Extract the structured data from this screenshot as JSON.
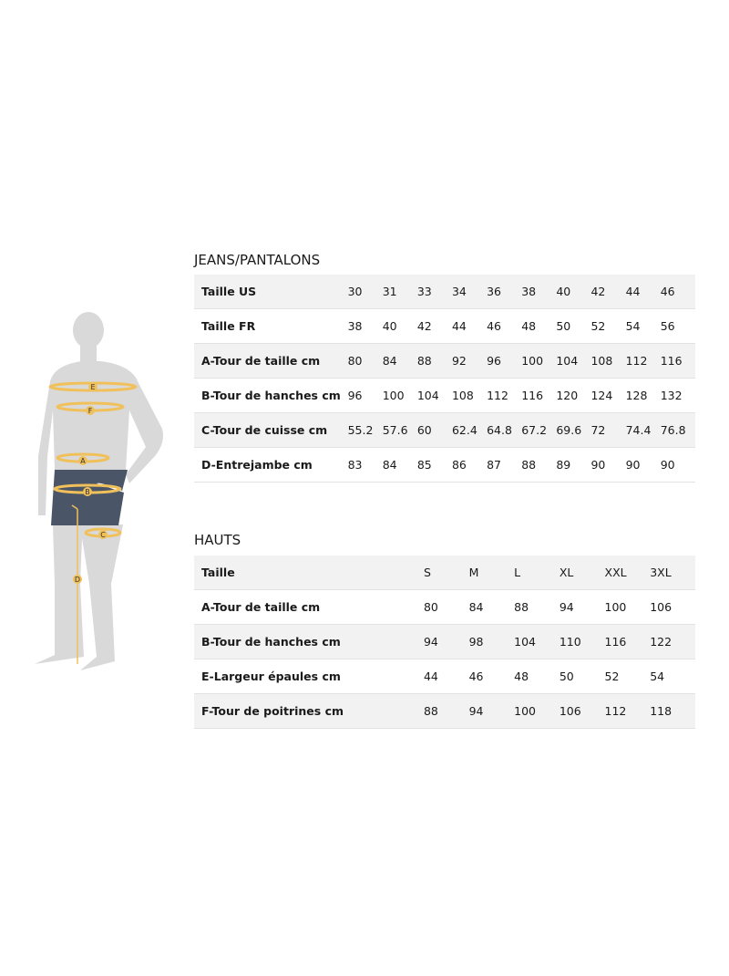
{
  "jeans": {
    "title": "JEANS/PANTALONS",
    "rows": [
      {
        "label": "Taille US",
        "values": [
          "30",
          "31",
          "33",
          "34",
          "36",
          "38",
          "40",
          "42",
          "44",
          "46"
        ]
      },
      {
        "label": "Taille FR",
        "values": [
          "38",
          "40",
          "42",
          "44",
          "46",
          "48",
          "50",
          "52",
          "54",
          "56"
        ]
      },
      {
        "label": "A-Tour de taille cm",
        "values": [
          "80",
          "84",
          "88",
          "92",
          "96",
          "100",
          "104",
          "108",
          "112",
          "116"
        ]
      },
      {
        "label": "B-Tour de hanches cm",
        "values": [
          "96",
          "100",
          "104",
          "108",
          "112",
          "116",
          "120",
          "124",
          "128",
          "132"
        ]
      },
      {
        "label": "C-Tour de cuisse cm",
        "values": [
          "55.2",
          "57.6",
          "60",
          "62.4",
          "64.8",
          "67.2",
          "69.6",
          "72",
          "74.4",
          "76.8"
        ]
      },
      {
        "label": "D-Entrejambe cm",
        "values": [
          "83",
          "84",
          "85",
          "86",
          "87",
          "88",
          "89",
          "90",
          "90",
          "90"
        ]
      }
    ]
  },
  "hauts": {
    "title": "HAUTS",
    "rows": [
      {
        "label": "Taille",
        "values": [
          "S",
          "M",
          "L",
          "XL",
          "XXL",
          "3XL"
        ]
      },
      {
        "label": "A-Tour de taille cm",
        "values": [
          "80",
          "84",
          "88",
          "94",
          "100",
          "106"
        ]
      },
      {
        "label": "B-Tour de hanches cm",
        "values": [
          "94",
          "98",
          "104",
          "110",
          "116",
          "122"
        ]
      },
      {
        "label": "E-Largeur épaules cm",
        "values": [
          "44",
          "46",
          "48",
          "50",
          "52",
          "54"
        ]
      },
      {
        "label": "F-Tour de poitrines cm",
        "values": [
          "88",
          "94",
          "100",
          "106",
          "112",
          "118"
        ]
      }
    ]
  },
  "figure": {
    "markers": [
      "E",
      "F",
      "A",
      "B",
      "C",
      "D"
    ],
    "colors": {
      "body": "#d9d9d9",
      "shorts": "#4a5568",
      "measure": "#f0c05a"
    }
  }
}
